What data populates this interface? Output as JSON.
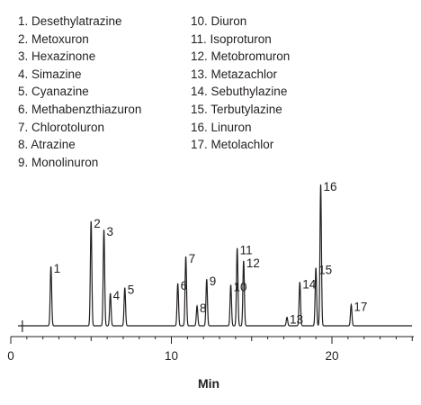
{
  "chart_data": {
    "type": "line",
    "title": "",
    "xlabel": "Min",
    "ylabel": "",
    "xlim": [
      0,
      25
    ],
    "x_ticks": [
      0,
      10,
      20
    ],
    "x_tick_labels": [
      "0",
      "10",
      "20"
    ],
    "grid": false,
    "legend_placement": "top",
    "legend_entries": [
      "1. Desethylatrazine",
      "2. Metoxuron",
      "3. Hexazinone",
      "4. Simazine",
      "5. Cyanazine",
      "6. Methabenzthiazuron",
      "7. Chlorotoluron",
      "8. Atrazine",
      "9. Monolinuron",
      "10. Diuron",
      "11. Isoproturon",
      "12. Metobromuron",
      "13. Metazachlor",
      "14. Sebuthylazine",
      "15. Terbutylazine",
      "16. Linuron",
      "17. Metolachlor"
    ],
    "series": [
      {
        "peaks": [
          {
            "label": "1",
            "rt": 2.5,
            "height": 0.42
          },
          {
            "label": "2",
            "rt": 5.0,
            "height": 0.74
          },
          {
            "label": "3",
            "rt": 5.8,
            "height": 0.68
          },
          {
            "label": "4",
            "rt": 6.2,
            "height": 0.23
          },
          {
            "label": "5",
            "rt": 7.1,
            "height": 0.27
          },
          {
            "label": "6",
            "rt": 10.4,
            "height": 0.3
          },
          {
            "label": "7",
            "rt": 10.9,
            "height": 0.49
          },
          {
            "label": "8",
            "rt": 11.6,
            "height": 0.14
          },
          {
            "label": "9",
            "rt": 12.2,
            "height": 0.33
          },
          {
            "label": "10",
            "rt": 13.7,
            "height": 0.29
          },
          {
            "label": "11",
            "rt": 14.1,
            "height": 0.55
          },
          {
            "label": "12",
            "rt": 14.5,
            "height": 0.46
          },
          {
            "label": "13",
            "rt": 17.2,
            "height": 0.06
          },
          {
            "label": "14",
            "rt": 18.0,
            "height": 0.31
          },
          {
            "label": "15",
            "rt": 19.0,
            "height": 0.41
          },
          {
            "label": "16",
            "rt": 19.3,
            "height": 1.0
          },
          {
            "label": "17",
            "rt": 21.2,
            "height": 0.15
          }
        ]
      }
    ],
    "line_color": "#231f20"
  }
}
